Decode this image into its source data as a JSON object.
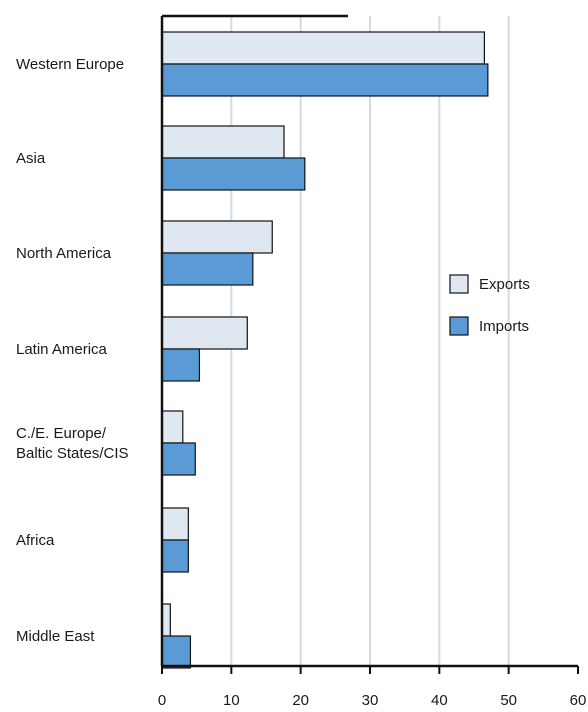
{
  "chart_data": {
    "type": "bar",
    "orientation": "horizontal",
    "categories": [
      [
        "Western Europe"
      ],
      [
        "Asia"
      ],
      [
        "North America"
      ],
      [
        "Latin America"
      ],
      [
        "C./E. Europe/",
        "Baltic States/CIS"
      ],
      [
        "Africa"
      ],
      [
        "Middle East"
      ]
    ],
    "series": [
      {
        "name": "Exports",
        "values": [
          46.5,
          17.6,
          15.9,
          12.3,
          3.0,
          3.8,
          1.2
        ],
        "color": "#dfe7f1"
      },
      {
        "name": "Imports",
        "values": [
          47.0,
          20.6,
          13.1,
          5.4,
          4.8,
          3.8,
          4.1
        ],
        "color": "#5b9bd5"
      }
    ],
    "xlim": [
      0,
      60
    ],
    "xticks": [
      "0",
      "10",
      "20",
      "30",
      "40",
      "50",
      "60"
    ],
    "grid": true,
    "legend": "right"
  }
}
